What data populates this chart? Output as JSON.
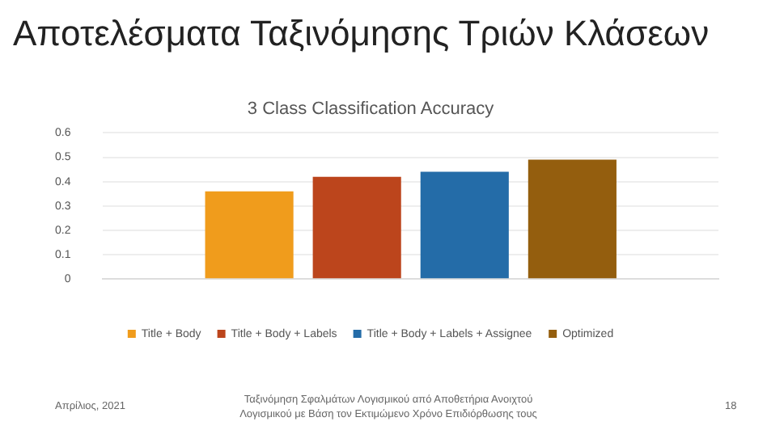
{
  "chart_data": {
    "type": "bar",
    "title": "Αποτελέσματα Ταξινόμησης Τριών Κλάσεων",
    "subtitle": "3 Class Classification Accuracy",
    "categories": [
      null
    ],
    "series": [
      {
        "name": "Title + Body",
        "color": "#f09c1c",
        "values": [
          0.36
        ]
      },
      {
        "name": "Title + Body + Labels",
        "color": "#bc451c",
        "values": [
          0.42
        ]
      },
      {
        "name": "Title + Body + Labels + Assignee",
        "color": "#246ca8",
        "values": [
          0.44
        ]
      },
      {
        "name": "Optimized",
        "color": "#945e0e",
        "values": [
          0.49
        ]
      }
    ],
    "ylim": [
      0,
      0.6
    ],
    "yticks": [
      0,
      0.1,
      0.2,
      0.3,
      0.4,
      0.5,
      0.6
    ],
    "grid": "y",
    "legend": "bottom",
    "annotations": [
      "Απρίλιος, 2021",
      "Ταξινόμηση Σφαλμάτων Λογισμικού από Αποθετήρια Ανοιχτού Λογισμικού με Βάση τον Εκτιμώμενο Χρόνο Επιδιόρθωσης τους",
      "18"
    ]
  }
}
